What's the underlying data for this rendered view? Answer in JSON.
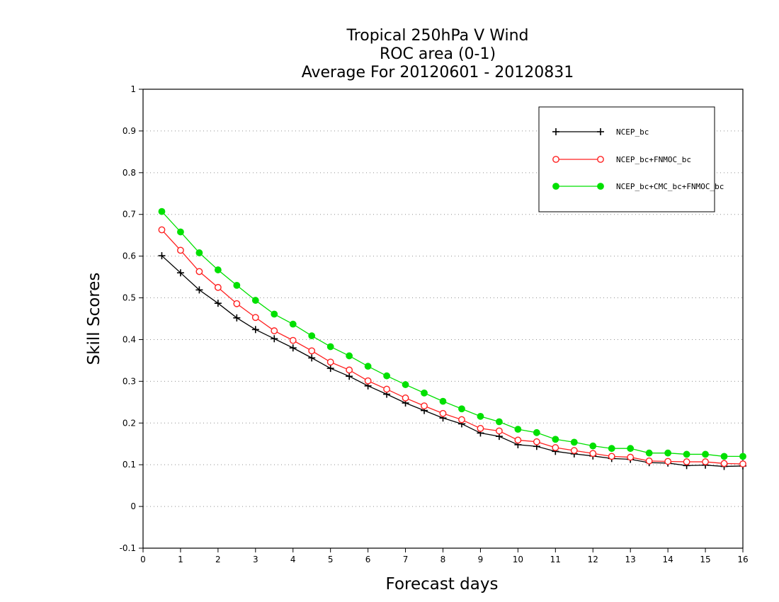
{
  "chart_data": {
    "type": "line",
    "title_lines": [
      "Tropical 250hPa V Wind",
      "ROC area (0-1)",
      "Average For 20120601 - 20120831"
    ],
    "xlabel": "Forecast days",
    "ylabel": "Skill Scores",
    "xlim": [
      0,
      16
    ],
    "ylim": [
      -0.1,
      1
    ],
    "xticks": [
      0,
      1,
      2,
      3,
      4,
      5,
      6,
      7,
      8,
      9,
      10,
      11,
      12,
      13,
      14,
      15,
      16
    ],
    "yticks": [
      -0.1,
      0,
      0.1,
      0.2,
      0.3,
      0.4,
      0.5,
      0.6,
      0.7,
      0.8,
      0.9,
      1
    ],
    "ytick_labels": [
      "-0.1",
      "0",
      "0.1",
      "0.2",
      "0.3",
      "0.4",
      "0.5",
      "0.6",
      "0.7",
      "0.8",
      "0.9",
      "1"
    ],
    "grid": "horizontal-dotted",
    "legend_position": "top-right",
    "x": [
      0.5,
      1,
      1.5,
      2,
      2.5,
      3,
      3.5,
      4,
      4.5,
      5,
      5.5,
      6,
      6.5,
      7,
      7.5,
      8,
      8.5,
      9,
      9.5,
      10,
      10.5,
      11,
      11.5,
      12,
      12.5,
      13,
      13.5,
      14,
      14.5,
      15,
      15.5,
      16
    ],
    "series": [
      {
        "name": "NCEP_bc",
        "color": "#000000",
        "marker": "plus",
        "values": [
          0.601,
          0.56,
          0.519,
          0.487,
          0.452,
          0.424,
          0.402,
          0.38,
          0.356,
          0.331,
          0.312,
          0.289,
          0.269,
          0.248,
          0.23,
          0.212,
          0.198,
          0.176,
          0.168,
          0.148,
          0.144,
          0.132,
          0.126,
          0.121,
          0.115,
          0.113,
          0.105,
          0.104,
          0.098,
          0.099,
          0.096,
          0.097
        ]
      },
      {
        "name": "NCEP_bc+FNMOC_bc",
        "color": "#ff2020",
        "marker": "open-circle",
        "values": [
          0.663,
          0.614,
          0.563,
          0.525,
          0.486,
          0.453,
          0.421,
          0.398,
          0.373,
          0.346,
          0.327,
          0.301,
          0.281,
          0.26,
          0.241,
          0.223,
          0.208,
          0.187,
          0.181,
          0.159,
          0.155,
          0.141,
          0.134,
          0.127,
          0.12,
          0.118,
          0.109,
          0.108,
          0.107,
          0.107,
          0.103,
          0.102
        ]
      },
      {
        "name": "NCEP_bc+CMC_bc+FNMOC_bc",
        "color": "#00e000",
        "marker": "filled-circle",
        "values": [
          0.707,
          0.658,
          0.608,
          0.567,
          0.53,
          0.494,
          0.461,
          0.437,
          0.409,
          0.383,
          0.361,
          0.336,
          0.313,
          0.292,
          0.272,
          0.252,
          0.234,
          0.216,
          0.203,
          0.185,
          0.177,
          0.161,
          0.154,
          0.145,
          0.139,
          0.139,
          0.128,
          0.128,
          0.125,
          0.125,
          0.12,
          0.12
        ]
      }
    ]
  }
}
